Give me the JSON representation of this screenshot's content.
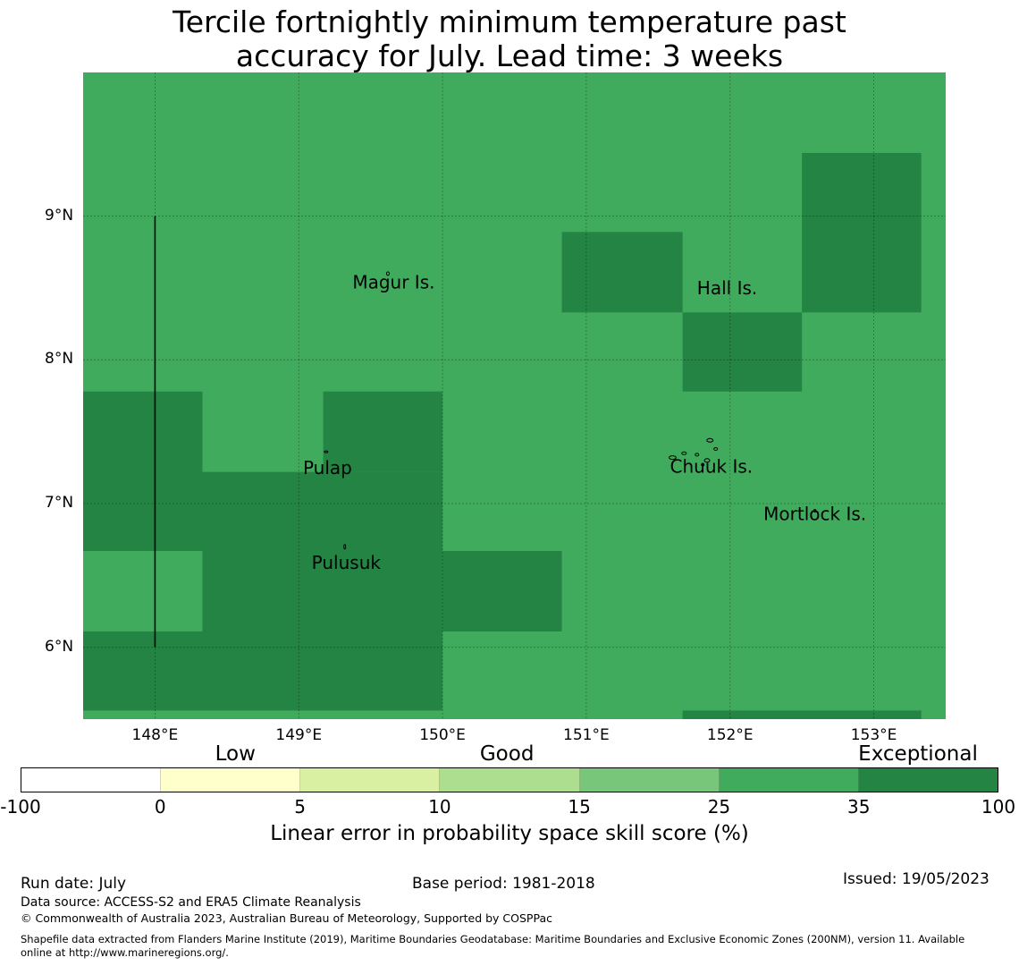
{
  "title": {
    "line1": "Tercile fortnightly minimum temperature past",
    "line2": "accuracy for July. Lead time: 3 weeks"
  },
  "map": {
    "lon_range": [
      147.5,
      153.5
    ],
    "lat_range": [
      5.5,
      10.0
    ],
    "background_color": "#41ab5d",
    "high_color": "#238443",
    "grid_cell_deg": 0.83,
    "high_skill_cells": [
      {
        "lon": [
          147.5,
          148.33
        ],
        "lat": [
          6.67,
          7.78
        ]
      },
      {
        "lon": [
          148.33,
          150.0
        ],
        "lat": [
          6.11,
          7.22
        ]
      },
      {
        "lon": [
          149.17,
          150.0
        ],
        "lat": [
          7.22,
          7.78
        ]
      },
      {
        "lon": [
          147.5,
          150.0
        ],
        "lat": [
          5.56,
          6.11
        ]
      },
      {
        "lon": [
          150.0,
          150.83
        ],
        "lat": [
          6.11,
          6.67
        ]
      },
      {
        "lon": [
          150.83,
          151.67
        ],
        "lat": [
          8.33,
          8.89
        ]
      },
      {
        "lon": [
          151.67,
          152.5
        ],
        "lat": [
          7.78,
          8.33
        ]
      },
      {
        "lon": [
          152.5,
          153.33
        ],
        "lat": [
          8.33,
          9.44
        ]
      },
      {
        "lon": [
          151.67,
          153.33
        ],
        "lat": [
          5.5,
          5.56
        ]
      }
    ],
    "lat_ticks": [
      "9°N",
      "8°N",
      "7°N",
      "6°N"
    ],
    "lat_values": [
      9,
      8,
      7,
      6
    ],
    "lon_ticks": [
      "148°E",
      "149°E",
      "150°E",
      "151°E",
      "152°E",
      "153°E"
    ],
    "lon_values": [
      148,
      149,
      150,
      151,
      152,
      153
    ],
    "boundary_line": {
      "lon": 148.0,
      "lat": [
        6.0,
        9.0
      ]
    },
    "places": [
      {
        "name": "Magur Is.",
        "lon": 149.66,
        "lat": 8.53
      },
      {
        "name": "Hall Is.",
        "lon": 151.98,
        "lat": 8.49
      },
      {
        "name": "Pulap",
        "lon": 149.2,
        "lat": 7.24
      },
      {
        "name": "Chuuk Is.",
        "lon": 151.87,
        "lat": 7.25
      },
      {
        "name": "Mortlock Is.",
        "lon": 152.59,
        "lat": 6.92
      },
      {
        "name": "Pulusuk",
        "lon": 149.33,
        "lat": 6.58
      }
    ]
  },
  "legend": {
    "categories": [
      {
        "label": "Low",
        "value": 0
      },
      {
        "label": "Good",
        "value": 15
      },
      {
        "label": "Exceptional",
        "value": 100
      }
    ],
    "ticks": [
      "-100",
      "0",
      "5",
      "10",
      "15",
      "25",
      "35",
      "100"
    ],
    "colors": [
      "#ffffff",
      "#ffffcc",
      "#d9f0a3",
      "#addd8e",
      "#78c679",
      "#41ab5d",
      "#238443"
    ],
    "label": "Linear error in probability space skill score (%)"
  },
  "footer": {
    "run_date": "Run date: July",
    "base_period": "Base period: 1981-2018",
    "issued": "Issued: 19/05/2023",
    "data_source": "Data source: ACCESS-S2 and ERA5 Climate Reanalysis",
    "copyright": "© Commonwealth of Australia 2023, Australian Bureau of Meteorology, Supported by COSPPac",
    "shapefile_line1": "Shapefile data extracted from Flanders Marine Institute (2019), Maritime Boundaries Geodatabase: Maritime Boundaries and Exclusive Economic Zones (200NM), version 11. Available",
    "shapefile_line2": "online at http://www.marineregions.org/."
  }
}
